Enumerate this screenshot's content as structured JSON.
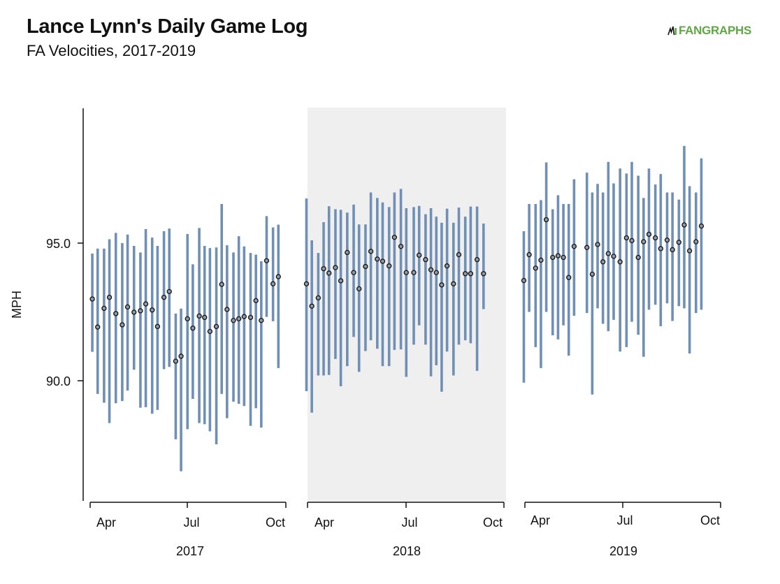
{
  "title": "Lance Lynn's Daily Game Log",
  "subtitle": "FA Velocities, 2017-2019",
  "brand": "FANGRAPHS",
  "colors": {
    "range_bar": "#6f8fb5",
    "point_fill": "#8f9aa6",
    "point_stroke": "#111111",
    "highlight_panel": "#efefef",
    "brand": "#5fa744"
  },
  "chart_data": {
    "type": "scatter",
    "ylabel": "MPH",
    "yticks": [
      90.0,
      95.0
    ],
    "yrange": [
      85.7,
      99.8
    ],
    "month_ticks": [
      "Apr",
      "Jul",
      "Oct"
    ],
    "highlighted_panel": "2018",
    "panels": [
      {
        "year": "2017",
        "games": [
          {
            "date": "2017-04-03",
            "avg": 92.97,
            "min": 91.05,
            "max": 94.62
          },
          {
            "date": "2017-04-08",
            "avg": 91.95,
            "min": 89.52,
            "max": 94.8
          },
          {
            "date": "2017-04-14",
            "avg": 92.63,
            "min": 89.2,
            "max": 94.8
          },
          {
            "date": "2017-04-19",
            "avg": 93.03,
            "min": 88.46,
            "max": 95.14
          },
          {
            "date": "2017-04-25",
            "avg": 92.44,
            "min": 89.18,
            "max": 95.37
          },
          {
            "date": "2017-05-01",
            "avg": 92.03,
            "min": 89.26,
            "max": 95.0
          },
          {
            "date": "2017-05-06",
            "avg": 92.68,
            "min": 89.64,
            "max": 95.31
          },
          {
            "date": "2017-05-12",
            "avg": 92.49,
            "min": 90.4,
            "max": 94.9
          },
          {
            "date": "2017-05-18",
            "avg": 92.54,
            "min": 89.02,
            "max": 94.66
          },
          {
            "date": "2017-05-23",
            "avg": 92.79,
            "min": 89.04,
            "max": 95.51
          },
          {
            "date": "2017-05-29",
            "avg": 92.57,
            "min": 88.8,
            "max": 95.2
          },
          {
            "date": "2017-06-03",
            "avg": 91.97,
            "min": 88.94,
            "max": 94.9
          },
          {
            "date": "2017-06-09",
            "avg": 93.03,
            "min": 90.42,
            "max": 95.43
          },
          {
            "date": "2017-06-14",
            "avg": 93.24,
            "min": 90.5,
            "max": 95.53
          },
          {
            "date": "2017-06-20",
            "avg": 90.71,
            "min": 87.87,
            "max": 92.44
          },
          {
            "date": "2017-06-25",
            "avg": 90.89,
            "min": 86.71,
            "max": 92.62
          },
          {
            "date": "2017-07-01",
            "avg": 92.25,
            "min": 88.24,
            "max": 95.33
          },
          {
            "date": "2017-07-06",
            "avg": 91.91,
            "min": 89.34,
            "max": 94.23
          },
          {
            "date": "2017-07-12",
            "avg": 92.35,
            "min": 88.46,
            "max": 95.55
          },
          {
            "date": "2017-07-17",
            "avg": 92.3,
            "min": 88.42,
            "max": 94.9
          },
          {
            "date": "2017-07-22",
            "avg": 91.79,
            "min": 88.16,
            "max": 94.82
          },
          {
            "date": "2017-07-28",
            "avg": 91.97,
            "min": 87.69,
            "max": 94.84
          },
          {
            "date": "2017-08-02",
            "avg": 93.5,
            "min": 89.52,
            "max": 96.42
          },
          {
            "date": "2017-08-07",
            "avg": 92.59,
            "min": 88.64,
            "max": 94.92
          },
          {
            "date": "2017-08-13",
            "avg": 92.19,
            "min": 89.24,
            "max": 94.66
          },
          {
            "date": "2017-08-18",
            "avg": 92.25,
            "min": 89.16,
            "max": 95.25
          },
          {
            "date": "2017-08-23",
            "avg": 92.33,
            "min": 89.08,
            "max": 94.88
          },
          {
            "date": "2017-08-29",
            "avg": 92.3,
            "min": 88.36,
            "max": 94.64
          },
          {
            "date": "2017-09-03",
            "avg": 92.91,
            "min": 89.0,
            "max": 94.58
          },
          {
            "date": "2017-09-08",
            "avg": 92.19,
            "min": 88.3,
            "max": 94.34
          },
          {
            "date": "2017-09-13",
            "avg": 94.36,
            "min": 92.32,
            "max": 95.98
          },
          {
            "date": "2017-09-19",
            "avg": 93.52,
            "min": 92.16,
            "max": 95.57
          },
          {
            "date": "2017-09-24",
            "avg": 93.78,
            "min": 90.46,
            "max": 95.67
          }
        ]
      },
      {
        "year": "2018",
        "games": [
          {
            "date": "2018-03-31",
            "avg": 93.52,
            "min": 89.62,
            "max": 96.62
          },
          {
            "date": "2018-04-05",
            "avg": 92.71,
            "min": 88.84,
            "max": 95.1
          },
          {
            "date": "2018-04-11",
            "avg": 93.01,
            "min": 90.19,
            "max": 94.64
          },
          {
            "date": "2018-04-16",
            "avg": 94.07,
            "min": 90.19,
            "max": 95.76
          },
          {
            "date": "2018-04-21",
            "avg": 93.91,
            "min": 90.21,
            "max": 96.34
          },
          {
            "date": "2018-04-27",
            "avg": 94.11,
            "min": 90.79,
            "max": 96.23
          },
          {
            "date": "2018-05-02",
            "avg": 93.63,
            "min": 89.8,
            "max": 96.21
          },
          {
            "date": "2018-05-08",
            "avg": 94.66,
            "min": 90.53,
            "max": 96.11
          },
          {
            "date": "2018-05-14",
            "avg": 93.93,
            "min": 91.59,
            "max": 96.4
          },
          {
            "date": "2018-05-19",
            "avg": 93.34,
            "min": 90.32,
            "max": 95.68
          },
          {
            "date": "2018-05-25",
            "avg": 94.15,
            "min": 91.08,
            "max": 95.68
          },
          {
            "date": "2018-05-30",
            "avg": 94.7,
            "min": 91.47,
            "max": 96.84
          },
          {
            "date": "2018-06-05",
            "avg": 94.42,
            "min": 91.16,
            "max": 96.64
          },
          {
            "date": "2018-06-10",
            "avg": 94.34,
            "min": 90.53,
            "max": 96.48
          },
          {
            "date": "2018-06-16",
            "avg": 94.17,
            "min": 90.53,
            "max": 96.31
          },
          {
            "date": "2018-06-21",
            "avg": 95.21,
            "min": 91.12,
            "max": 96.84
          },
          {
            "date": "2018-06-27",
            "avg": 94.88,
            "min": 91.14,
            "max": 96.97
          },
          {
            "date": "2018-07-02",
            "avg": 93.93,
            "min": 90.14,
            "max": 96.27
          },
          {
            "date": "2018-07-09",
            "avg": 93.93,
            "min": 91.31,
            "max": 96.31
          },
          {
            "date": "2018-07-14",
            "avg": 94.56,
            "min": 92.01,
            "max": 96.35
          },
          {
            "date": "2018-07-20",
            "avg": 94.4,
            "min": 91.31,
            "max": 96.05
          },
          {
            "date": "2018-07-25",
            "avg": 94.03,
            "min": 90.16,
            "max": 96.27
          },
          {
            "date": "2018-07-30",
            "avg": 93.93,
            "min": 90.56,
            "max": 95.96
          },
          {
            "date": "2018-08-04",
            "avg": 93.48,
            "min": 89.6,
            "max": 95.74
          },
          {
            "date": "2018-08-09",
            "avg": 94.17,
            "min": 91.06,
            "max": 96.25
          },
          {
            "date": "2018-08-15",
            "avg": 93.52,
            "min": 90.19,
            "max": 95.74
          },
          {
            "date": "2018-08-20",
            "avg": 94.58,
            "min": 91.31,
            "max": 96.29
          },
          {
            "date": "2018-08-26",
            "avg": 93.89,
            "min": 91.47,
            "max": 95.96
          },
          {
            "date": "2018-08-31",
            "avg": 93.89,
            "min": 91.36,
            "max": 96.33
          },
          {
            "date": "2018-09-06",
            "avg": 94.4,
            "min": 90.36,
            "max": 96.33
          },
          {
            "date": "2018-09-12",
            "avg": 93.89,
            "min": 92.6,
            "max": 95.71
          }
        ]
      },
      {
        "year": "2019",
        "games": [
          {
            "date": "2019-03-31",
            "avg": 93.64,
            "min": 89.93,
            "max": 95.43
          },
          {
            "date": "2019-04-05",
            "avg": 94.58,
            "min": 92.5,
            "max": 96.42
          },
          {
            "date": "2019-04-11",
            "avg": 94.09,
            "min": 91.22,
            "max": 96.42
          },
          {
            "date": "2019-04-16",
            "avg": 94.38,
            "min": 90.46,
            "max": 96.56
          },
          {
            "date": "2019-04-21",
            "avg": 95.85,
            "min": 92.5,
            "max": 97.93
          },
          {
            "date": "2019-04-27",
            "avg": 94.48,
            "min": 91.65,
            "max": 96.23
          },
          {
            "date": "2019-05-02",
            "avg": 94.54,
            "min": 91.5,
            "max": 96.74
          },
          {
            "date": "2019-05-07",
            "avg": 94.48,
            "min": 92.01,
            "max": 96.42
          },
          {
            "date": "2019-05-12",
            "avg": 93.75,
            "min": 90.91,
            "max": 96.42
          },
          {
            "date": "2019-05-17",
            "avg": 94.88,
            "min": 92.36,
            "max": 97.32
          },
          {
            "date": "2019-05-29",
            "avg": 94.84,
            "min": 92.46,
            "max": 97.56
          },
          {
            "date": "2019-06-03",
            "avg": 93.87,
            "min": 89.5,
            "max": 96.84
          },
          {
            "date": "2019-06-08",
            "avg": 94.95,
            "min": 92.63,
            "max": 97.15
          },
          {
            "date": "2019-06-13",
            "avg": 94.32,
            "min": 92.07,
            "max": 96.84
          },
          {
            "date": "2019-06-18",
            "avg": 94.62,
            "min": 91.8,
            "max": 97.95
          },
          {
            "date": "2019-06-23",
            "avg": 94.52,
            "min": 92.21,
            "max": 97.17
          },
          {
            "date": "2019-06-29",
            "avg": 94.32,
            "min": 91.06,
            "max": 97.71
          },
          {
            "date": "2019-07-05",
            "avg": 95.19,
            "min": 91.22,
            "max": 97.53
          },
          {
            "date": "2019-07-10",
            "avg": 95.09,
            "min": 92.14,
            "max": 97.95
          },
          {
            "date": "2019-07-16",
            "avg": 94.48,
            "min": 91.67,
            "max": 97.45
          },
          {
            "date": "2019-07-21",
            "avg": 95.05,
            "min": 90.87,
            "max": 96.64
          },
          {
            "date": "2019-07-26",
            "avg": 95.32,
            "min": 92.58,
            "max": 97.71
          },
          {
            "date": "2019-08-01",
            "avg": 95.19,
            "min": 92.76,
            "max": 97.13
          },
          {
            "date": "2019-08-06",
            "avg": 94.8,
            "min": 91.98,
            "max": 97.51
          },
          {
            "date": "2019-08-12",
            "avg": 95.11,
            "min": 92.81,
            "max": 96.84
          },
          {
            "date": "2019-08-17",
            "avg": 94.76,
            "min": 92.17,
            "max": 96.84
          },
          {
            "date": "2019-08-23",
            "avg": 95.03,
            "min": 92.71,
            "max": 96.58
          },
          {
            "date": "2019-08-28",
            "avg": 95.66,
            "min": 92.63,
            "max": 98.53
          },
          {
            "date": "2019-09-02",
            "avg": 94.72,
            "min": 90.99,
            "max": 97.07
          },
          {
            "date": "2019-09-08",
            "avg": 95.05,
            "min": 92.46,
            "max": 96.84
          },
          {
            "date": "2019-09-13",
            "avg": 95.62,
            "min": 92.58,
            "max": 98.08
          }
        ]
      }
    ]
  }
}
